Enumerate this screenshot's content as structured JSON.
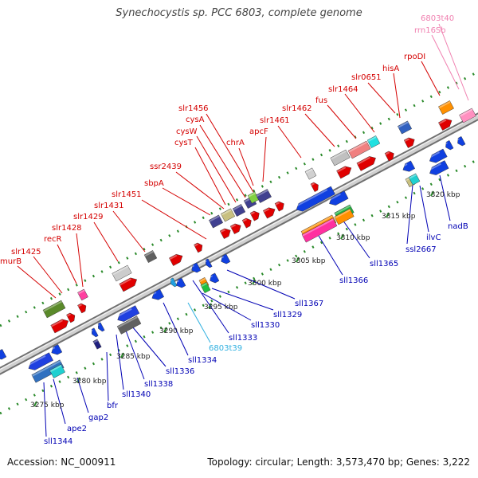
{
  "title": "Synechocystis sp. PCC 6803, complete genome",
  "footer": {
    "accession": "Accession: NC_000911",
    "summary": "Topology: circular; Length: 3,573,470 bp; Genes: 3,222"
  },
  "colors": {
    "forward_label": "#d40000",
    "reverse_label": "#0000b4",
    "rna_label_pink": "#f080b0",
    "rna_label_cyan": "#30b0e0",
    "backbone": "#b4b4b4",
    "tick": "#2a8a2a"
  },
  "scale_labels": [
    "3275 kbp",
    "3280 kbp",
    "3285 kbp",
    "3290 kbp",
    "3295 kbp",
    "3300 kbp",
    "3305 kbp",
    "3310 kbp",
    "3315 kbp",
    "3320 kbp"
  ],
  "forward_gene_labels": [
    "murB",
    "slr1425",
    "recR",
    "slr1428",
    "slr1429",
    "slr1431",
    "slr1451",
    "sbpA",
    "ssr2439",
    "cysT",
    "cysW",
    "cysA",
    "slr1456",
    "chrA",
    "apcF",
    "slr1461",
    "slr1462",
    "fus",
    "slr1464",
    "slr0651",
    "hisA",
    "rpoDI"
  ],
  "rna_labels_top": [
    "rrn16Sb",
    "6803t40"
  ],
  "reverse_gene_labels": [
    "sll1344",
    "ape2",
    "gap2",
    "bfr",
    "sll1340",
    "sll1338",
    "sll1336",
    "sll1334",
    "sll1333",
    "sll1330",
    "sll1329",
    "sll1367",
    "sll1366",
    "sll1365",
    "ssl2667",
    "ilvC",
    "nadB"
  ],
  "rna_labels_bottom": [
    "6803t39"
  ]
}
